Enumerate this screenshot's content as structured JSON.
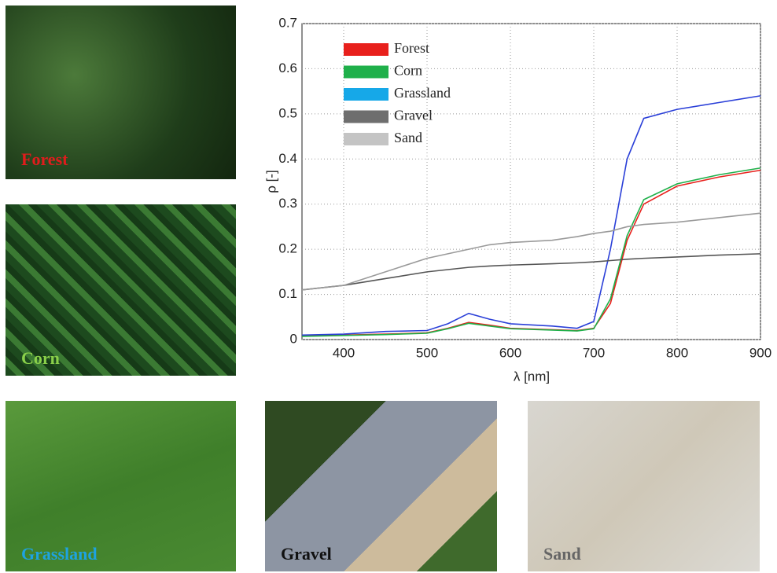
{
  "photos": [
    {
      "label": "Forest"
    },
    {
      "label": "Corn"
    },
    {
      "label": "Grassland"
    },
    {
      "label": "Gravel"
    },
    {
      "label": "Sand"
    }
  ],
  "chart_data": {
    "type": "line",
    "x_label": "λ [nm]",
    "y_label": "ρ [-]",
    "x": [
      350,
      400,
      450,
      500,
      525,
      550,
      575,
      600,
      650,
      680,
      700,
      720,
      740,
      760,
      800,
      850,
      900
    ],
    "series": [
      {
        "name": "Forest",
        "color": "#e8201c",
        "values": [
          0.008,
          0.01,
          0.012,
          0.015,
          0.025,
          0.038,
          0.032,
          0.025,
          0.022,
          0.02,
          0.025,
          0.08,
          0.22,
          0.3,
          0.34,
          0.36,
          0.375
        ]
      },
      {
        "name": "Corn",
        "color": "#1fb04a",
        "values": [
          0.007,
          0.009,
          0.011,
          0.014,
          0.024,
          0.036,
          0.03,
          0.024,
          0.021,
          0.019,
          0.024,
          0.09,
          0.23,
          0.31,
          0.345,
          0.365,
          0.38
        ]
      },
      {
        "name": "Grassland",
        "color": "#2a3fd8",
        "values": [
          0.01,
          0.012,
          0.018,
          0.02,
          0.035,
          0.058,
          0.045,
          0.035,
          0.03,
          0.025,
          0.04,
          0.2,
          0.4,
          0.49,
          0.51,
          0.525,
          0.54
        ]
      },
      {
        "name": "Gravel",
        "color": "#555555",
        "values": [
          0.11,
          0.12,
          0.135,
          0.15,
          0.155,
          0.16,
          0.163,
          0.165,
          0.168,
          0.17,
          0.172,
          0.175,
          0.178,
          0.18,
          0.183,
          0.187,
          0.19
        ]
      },
      {
        "name": "Sand",
        "color": "#9a9a9a",
        "values": [
          0.11,
          0.12,
          0.15,
          0.18,
          0.19,
          0.2,
          0.21,
          0.215,
          0.22,
          0.228,
          0.235,
          0.24,
          0.25,
          0.255,
          0.26,
          0.27,
          0.28
        ]
      }
    ],
    "legend_swatch_colors": [
      "#e8201c",
      "#1fb04a",
      "#16a8e8",
      "#6e6e6e",
      "#c4c4c4"
    ],
    "xlim": [
      350,
      900
    ],
    "xticks": [
      400,
      500,
      600,
      700,
      800,
      900
    ],
    "ylim": [
      0,
      0.7
    ],
    "yticks": [
      0,
      0.1,
      0.2,
      0.3,
      0.4,
      0.5,
      0.6,
      0.7
    ],
    "grid": true,
    "legend": "upper left"
  }
}
